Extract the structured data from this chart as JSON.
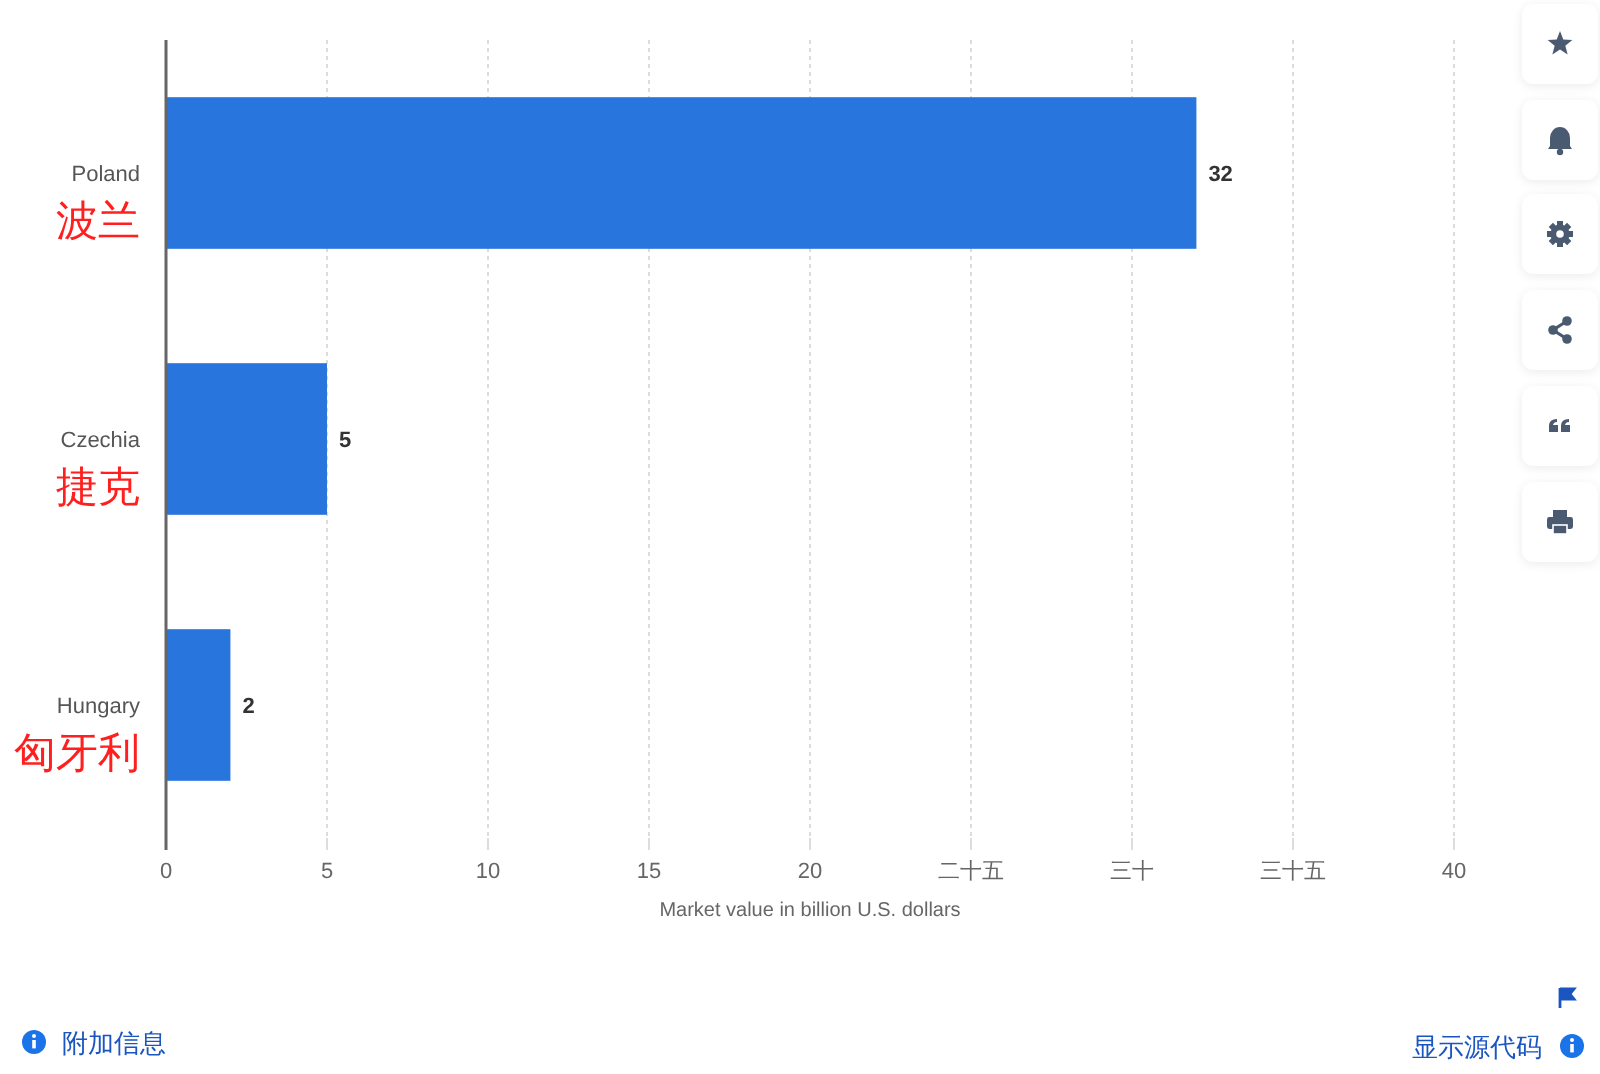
{
  "chart_data": {
    "type": "bar",
    "orientation": "horizontal",
    "categories": [
      "Poland\n波兰",
      "Czechia\n捷克",
      "Hungary\n匈牙利"
    ],
    "values": [
      32,
      5,
      2
    ],
    "color": "#2876dd",
    "xlim": [
      0,
      40
    ],
    "xticks": [
      0,
      5,
      10,
      15,
      20,
      {
        "value": 25,
        "label": "二十五"
      },
      {
        "value": 30,
        "label": "三十"
      },
      {
        "value": 35,
        "label": "三十五"
      },
      40
    ],
    "xlabel": "Market value in billion U.S. dollars",
    "grid": "x",
    "data_labels": true,
    "annotations": [
      "附加信息",
      "显示源代码"
    ]
  }
}
